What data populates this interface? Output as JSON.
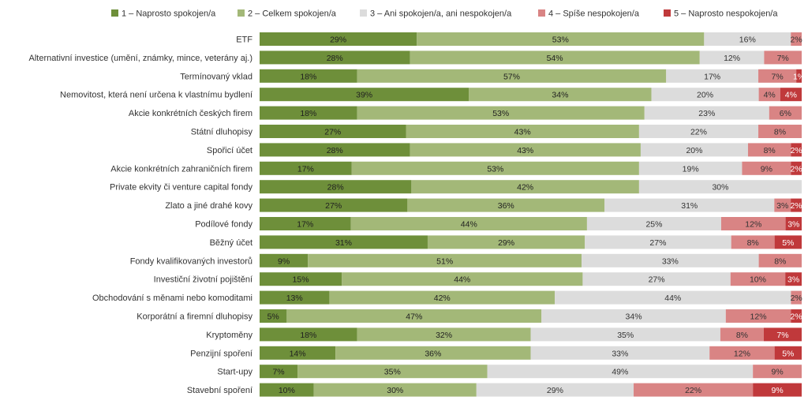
{
  "chart_data": {
    "type": "bar",
    "orientation": "horizontal",
    "stacked": true,
    "percent": true,
    "legend_position": "top",
    "categories": [
      "ETF",
      "Alternativní investice (umění, známky, mince, veterány aj.)",
      "Termínovaný vklad",
      "Nemovitost, která není určena k vlastnímu bydlení",
      "Akcie konkrétních českých firem",
      "Státní dluhopisy",
      "Spořicí účet",
      "Akcie konkrétních zahraničních firem",
      "Private ekvity či venture capital fondy",
      "Zlato a jiné drahé kovy",
      "Podílové fondy",
      "Běžný účet",
      "Fondy kvalifikovaných investorů",
      "Investiční životní pojištění",
      "Obchodování s měnami nebo komoditami",
      "Korporátní a firemní dluhopisy",
      "Kryptoměny",
      "Penzijní spoření",
      "Start-upy",
      "Stavební spoření"
    ],
    "series": [
      {
        "name": "1 – Naprosto spokojen/a",
        "color": "#6e8f3a",
        "text_color": "#1f1f1f",
        "values": [
          29,
          28,
          18,
          39,
          18,
          27,
          28,
          17,
          28,
          27,
          17,
          31,
          9,
          15,
          13,
          5,
          18,
          14,
          7,
          10
        ]
      },
      {
        "name": "2 – Celkem spokojen/a",
        "color": "#a3b878",
        "text_color": "#1f1f1f",
        "values": [
          53,
          54,
          57,
          34,
          53,
          43,
          43,
          53,
          42,
          36,
          44,
          29,
          51,
          44,
          42,
          47,
          32,
          36,
          35,
          30
        ]
      },
      {
        "name": "3 – Ani spokojen/a, ani nespokojen/a",
        "color": "#dcdcdc",
        "text_color": "#333333",
        "values": [
          16,
          12,
          17,
          20,
          23,
          22,
          20,
          19,
          30,
          31,
          25,
          27,
          33,
          27,
          44,
          34,
          35,
          33,
          49,
          29
        ]
      },
      {
        "name": "4 – Spíše nespokojen/a",
        "color": "#d98484",
        "text_color": "#333333",
        "values": [
          2,
          7,
          7,
          4,
          6,
          8,
          8,
          9,
          0,
          3,
          12,
          8,
          8,
          10,
          2,
          12,
          8,
          12,
          9,
          22
        ]
      },
      {
        "name": "5 – Naprosto nespokojen/a",
        "color": "#c0393b",
        "text_color": "#ffffff",
        "values": [
          0,
          0,
          1,
          4,
          0,
          0,
          2,
          2,
          0,
          2,
          3,
          5,
          0,
          3,
          0,
          2,
          7,
          5,
          0,
          9
        ]
      }
    ],
    "value_suffix": "%"
  }
}
